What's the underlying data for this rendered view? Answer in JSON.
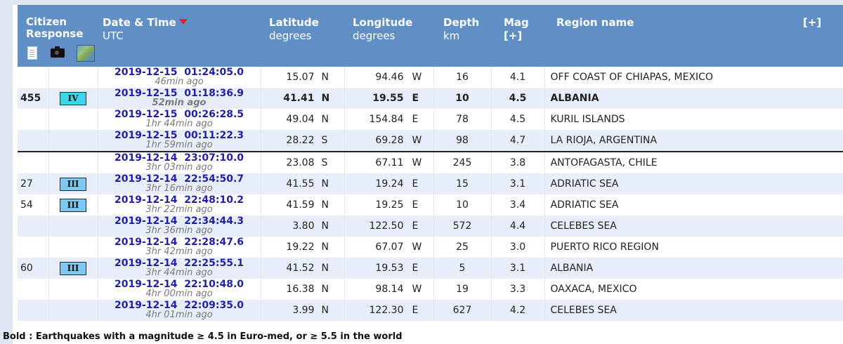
{
  "header": {
    "citizen_response": "Citizen Response",
    "date_time": "Date & Time",
    "date_time_sub": "UTC",
    "latitude": "Latitude",
    "latitude_sub": "degrees",
    "longitude": "Longitude",
    "longitude_sub": "degrees",
    "depth": "Depth",
    "depth_sub": "km",
    "mag": "Mag",
    "mag_sub": "[+]",
    "region": "Region name",
    "expand": "[+]"
  },
  "colors": {
    "header_bg": "#5f8fc4",
    "row_alt": "#e7eef9",
    "datetime_text": "#1f1fa8",
    "badge_IV": "#3fd4e8",
    "badge_III": "#7ec8f0"
  },
  "rows": [
    {
      "resp": "",
      "badge": "",
      "date": "2019-12-15",
      "time": "01:24:05.0",
      "ago": "46min ago",
      "lat": "15.07",
      "lat_dir": "N",
      "lon": "94.46",
      "lon_dir": "W",
      "depth": "16",
      "mag": "4.1",
      "region": "OFF COAST OF CHIAPAS, MEXICO",
      "bold": false,
      "alt": false,
      "sep": false
    },
    {
      "resp": "455",
      "badge": "IV",
      "date": "2019-12-15",
      "time": "01:18:36.9",
      "ago": "52min ago",
      "lat": "41.41",
      "lat_dir": "N",
      "lon": "19.55",
      "lon_dir": "E",
      "depth": "10",
      "mag": "4.5",
      "region": "ALBANIA",
      "bold": true,
      "alt": true,
      "sep": false
    },
    {
      "resp": "",
      "badge": "",
      "date": "2019-12-15",
      "time": "00:26:28.5",
      "ago": "1hr 44min ago",
      "lat": "49.04",
      "lat_dir": "N",
      "lon": "154.84",
      "lon_dir": "E",
      "depth": "78",
      "mag": "4.5",
      "region": "KURIL ISLANDS",
      "bold": false,
      "alt": false,
      "sep": false
    },
    {
      "resp": "",
      "badge": "",
      "date": "2019-12-15",
      "time": "00:11:22.3",
      "ago": "1hr 59min ago",
      "lat": "28.22",
      "lat_dir": "S",
      "lon": "69.28",
      "lon_dir": "W",
      "depth": "98",
      "mag": "4.7",
      "region": "LA RIOJA, ARGENTINA",
      "bold": false,
      "alt": true,
      "sep": false
    },
    {
      "resp": "",
      "badge": "",
      "date": "2019-12-14",
      "time": "23:07:10.0",
      "ago": "3hr 03min ago",
      "lat": "23.08",
      "lat_dir": "S",
      "lon": "67.11",
      "lon_dir": "W",
      "depth": "245",
      "mag": "3.8",
      "region": "ANTOFAGASTA, CHILE",
      "bold": false,
      "alt": false,
      "sep": true
    },
    {
      "resp": "27",
      "badge": "III",
      "date": "2019-12-14",
      "time": "22:54:50.7",
      "ago": "3hr 16min ago",
      "lat": "41.55",
      "lat_dir": "N",
      "lon": "19.24",
      "lon_dir": "E",
      "depth": "15",
      "mag": "3.1",
      "region": "ADRIATIC SEA",
      "bold": false,
      "alt": true,
      "sep": false
    },
    {
      "resp": "54",
      "badge": "III",
      "date": "2019-12-14",
      "time": "22:48:10.2",
      "ago": "3hr 22min ago",
      "lat": "41.59",
      "lat_dir": "N",
      "lon": "19.25",
      "lon_dir": "E",
      "depth": "10",
      "mag": "3.4",
      "region": "ADRIATIC SEA",
      "bold": false,
      "alt": false,
      "sep": false
    },
    {
      "resp": "",
      "badge": "",
      "date": "2019-12-14",
      "time": "22:34:44.3",
      "ago": "3hr 36min ago",
      "lat": "3.80",
      "lat_dir": "N",
      "lon": "122.50",
      "lon_dir": "E",
      "depth": "572",
      "mag": "4.4",
      "region": "CELEBES SEA",
      "bold": false,
      "alt": true,
      "sep": false
    },
    {
      "resp": "",
      "badge": "",
      "date": "2019-12-14",
      "time": "22:28:47.6",
      "ago": "3hr 42min ago",
      "lat": "19.22",
      "lat_dir": "N",
      "lon": "67.07",
      "lon_dir": "W",
      "depth": "25",
      "mag": "3.0",
      "region": "PUERTO RICO REGION",
      "bold": false,
      "alt": false,
      "sep": false
    },
    {
      "resp": "60",
      "badge": "III",
      "date": "2019-12-14",
      "time": "22:25:55.1",
      "ago": "3hr 44min ago",
      "lat": "41.52",
      "lat_dir": "N",
      "lon": "19.53",
      "lon_dir": "E",
      "depth": "5",
      "mag": "3.1",
      "region": "ALBANIA",
      "bold": false,
      "alt": true,
      "sep": false
    },
    {
      "resp": "",
      "badge": "",
      "date": "2019-12-14",
      "time": "22:10:48.0",
      "ago": "4hr 00min ago",
      "lat": "16.38",
      "lat_dir": "N",
      "lon": "98.14",
      "lon_dir": "W",
      "depth": "19",
      "mag": "3.3",
      "region": "OAXACA, MEXICO",
      "bold": false,
      "alt": false,
      "sep": false
    },
    {
      "resp": "",
      "badge": "",
      "date": "2019-12-14",
      "time": "22:09:35.0",
      "ago": "4hr 01min ago",
      "lat": "3.99",
      "lat_dir": "N",
      "lon": "122.30",
      "lon_dir": "E",
      "depth": "627",
      "mag": "4.2",
      "region": "CELEBES SEA",
      "bold": false,
      "alt": true,
      "sep": false
    }
  ],
  "footer": "Bold : Earthquakes with a magnitude ≥ 4.5 in Euro-med, or ≥ 5.5 in the world"
}
